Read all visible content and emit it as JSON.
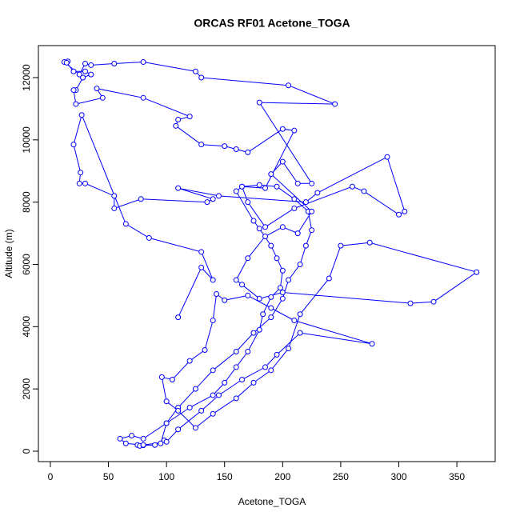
{
  "chart_data": {
    "type": "scatter",
    "title": "ORCAS RF01 Acetone_TOGA",
    "x_label": "Acetone_TOGA",
    "y_label": "Altitude (m)",
    "xlim": [
      -10.3,
      383
    ],
    "ylim": [
      -334,
      13028
    ],
    "xticks": [
      0,
      50,
      100,
      150,
      200,
      250,
      300,
      350
    ],
    "yticks": [
      0,
      2000,
      4000,
      6000,
      8000,
      10000,
      12000
    ],
    "color": "#0000ff",
    "x": [
      75,
      77,
      80,
      90,
      98,
      95,
      100,
      110,
      125,
      140,
      160,
      175,
      190,
      200,
      205,
      215,
      220,
      225,
      222,
      210,
      195,
      180,
      165,
      160,
      175,
      180,
      190,
      195,
      200,
      198,
      190,
      183,
      180,
      170,
      160,
      150,
      140,
      120,
      100,
      80,
      70,
      60,
      65,
      80,
      100,
      110,
      130,
      145,
      165,
      185,
      195,
      215,
      277,
      210,
      190,
      170,
      150,
      143,
      140,
      133,
      120,
      105,
      96,
      100,
      110,
      125,
      140,
      160,
      175,
      190,
      205,
      215,
      240,
      250,
      275,
      367,
      330,
      310,
      200,
      180,
      165,
      160,
      170,
      185,
      200,
      213,
      225,
      190,
      200,
      213,
      225,
      180,
      245,
      205,
      130,
      125,
      80,
      55,
      35,
      30,
      25,
      12,
      15,
      14,
      20,
      30,
      35,
      28,
      22,
      20,
      22,
      45,
      40,
      80,
      120,
      110,
      108,
      130,
      150,
      160,
      170,
      200,
      210,
      185,
      165,
      170,
      185,
      210,
      260,
      270,
      300,
      305,
      290,
      230,
      220,
      145,
      110,
      140,
      135,
      78,
      55,
      55,
      30,
      25,
      26,
      20,
      27,
      65,
      85,
      130,
      140,
      130,
      110
    ],
    "y": [
      200,
      170,
      190,
      200,
      350,
      250,
      900,
      1400,
      2000,
      2600,
      3200,
      3800,
      4300,
      4900,
      5500,
      6000,
      6600,
      7100,
      7700,
      8100,
      8500,
      8550,
      8500,
      8350,
      7400,
      7150,
      6600,
      6200,
      5800,
      5250,
      4950,
      4400,
      3900,
      3200,
      2700,
      2200,
      1800,
      1400,
      900,
      400,
      500,
      400,
      250,
      200,
      300,
      700,
      1300,
      1800,
      2300,
      2700,
      3100,
      3800,
      3450,
      4200,
      4600,
      5000,
      4850,
      5050,
      4200,
      3250,
      2900,
      2300,
      2380,
      1600,
      1300,
      750,
      1200,
      1700,
      2200,
      2600,
      3300,
      4400,
      5550,
      6600,
      6700,
      5750,
      4800,
      4750,
      5100,
      4900,
      5350,
      5500,
      6200,
      6900,
      7200,
      7000,
      7700,
      8900,
      9300,
      8600,
      8600,
      11200,
      11150,
      11750,
      12000,
      12200,
      12500,
      12450,
      12400,
      12450,
      12100,
      12500,
      12520,
      12480,
      12200,
      12200,
      12100,
      12000,
      11600,
      11600,
      11150,
      11350,
      11650,
      11350,
      10750,
      10650,
      10450,
      9850,
      9800,
      9700,
      9600,
      10350,
      10300,
      8450,
      8500,
      8000,
      7200,
      7800,
      8500,
      8350,
      7600,
      7700,
      9450,
      8300,
      8000,
      8200,
      8450,
      8100,
      8000,
      8100,
      7800,
      8200,
      8600,
      8600,
      8950,
      9850,
      10800,
      7300,
      6850,
      6400,
      5500,
      5900,
      4300
    ]
  }
}
